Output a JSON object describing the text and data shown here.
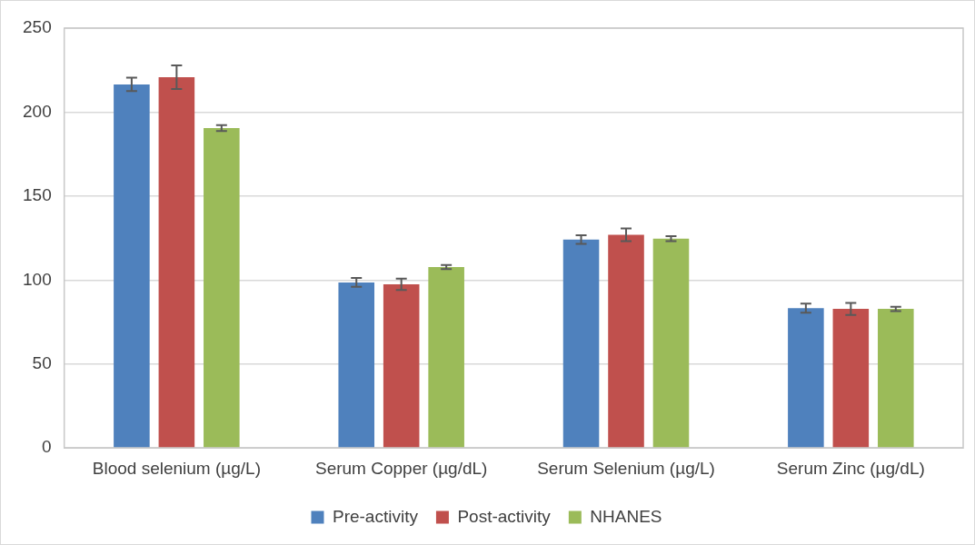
{
  "chart_data": {
    "type": "bar",
    "categories": [
      "Blood selenium (µg/L)",
      "Serum Copper (µg/dL)",
      "Serum Selenium (µg/L)",
      "Serum Zinc (µg/dL)"
    ],
    "series": [
      {
        "name": "Pre-activity",
        "color": "#4f81bd",
        "values": [
          216.5,
          98.6,
          124.1,
          83.3
        ],
        "errors": [
          4,
          2.6,
          2.6,
          2.7
        ]
      },
      {
        "name": "Post-activity",
        "color": "#c0504d",
        "values": [
          220.8,
          97.5,
          127,
          82.8
        ],
        "errors": [
          7,
          3.4,
          3.8,
          3.6
        ]
      },
      {
        "name": "NHANES",
        "color": "#9bbb59",
        "values": [
          190.5,
          107.7,
          124.7,
          82.8
        ],
        "errors": [
          1.7,
          1.2,
          1.5,
          1.3
        ]
      }
    ],
    "ylim": [
      0,
      250
    ],
    "yticks": [
      0,
      50,
      100,
      150,
      200,
      250
    ],
    "grid": "y",
    "legend": "bottom"
  }
}
